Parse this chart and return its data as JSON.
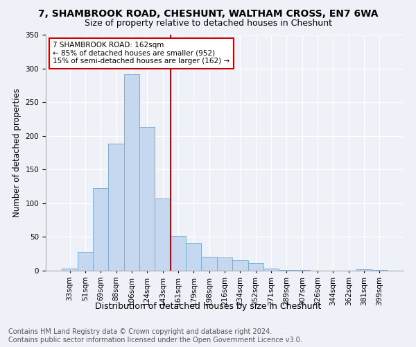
{
  "title": "7, SHAMBROOK ROAD, CHESHUNT, WALTHAM CROSS, EN7 6WA",
  "subtitle": "Size of property relative to detached houses in Cheshunt",
  "xlabel": "Distribution of detached houses by size in Cheshunt",
  "ylabel": "Number of detached properties",
  "footer_line1": "Contains HM Land Registry data © Crown copyright and database right 2024.",
  "footer_line2": "Contains public sector information licensed under the Open Government Licence v3.0.",
  "bin_labels": [
    "33sqm",
    "51sqm",
    "69sqm",
    "88sqm",
    "106sqm",
    "124sqm",
    "143sqm",
    "161sqm",
    "179sqm",
    "198sqm",
    "216sqm",
    "234sqm",
    "252sqm",
    "271sqm",
    "289sqm",
    "307sqm",
    "326sqm",
    "344sqm",
    "362sqm",
    "381sqm",
    "399sqm"
  ],
  "bar_heights": [
    3,
    28,
    122,
    188,
    291,
    213,
    107,
    51,
    41,
    21,
    20,
    15,
    11,
    3,
    1,
    1,
    0,
    0,
    0,
    2,
    1
  ],
  "bar_color": "#c5d8f0",
  "bar_edge_color": "#7bafd4",
  "vline_label_index": 7,
  "vline_color": "#cc0000",
  "annotation_line1": "7 SHAMBROOK ROAD: 162sqm",
  "annotation_line2": "← 85% of detached houses are smaller (952)",
  "annotation_line3": "15% of semi-detached houses are larger (162) →",
  "annotation_box_color": "#ffffff",
  "annotation_box_edge": "#cc0000",
  "ylim": [
    0,
    350
  ],
  "yticks": [
    0,
    50,
    100,
    150,
    200,
    250,
    300,
    350
  ],
  "background_color": "#eef2f8",
  "plot_bg_color": "#eef2f8",
  "title_fontsize": 10,
  "subtitle_fontsize": 9,
  "xlabel_fontsize": 9,
  "ylabel_fontsize": 8.5,
  "tick_fontsize": 7.5,
  "footer_fontsize": 7
}
